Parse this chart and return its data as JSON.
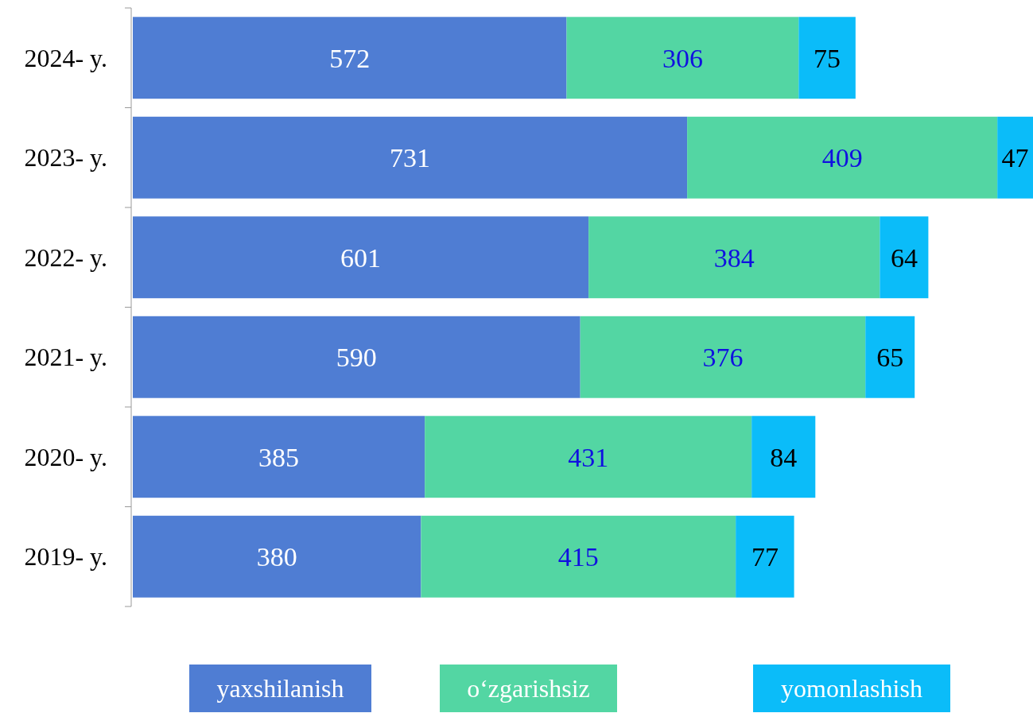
{
  "chart_data": {
    "type": "bar",
    "orientation": "horizontal",
    "stacked": true,
    "categories": [
      "2024- y.",
      "2023- y.",
      "2022- y.",
      "2021- y.",
      "2020- y.",
      "2019- y."
    ],
    "series": [
      {
        "name": "yaxshilanish",
        "color": "#4f7dd3",
        "values": [
          572,
          731,
          601,
          590,
          385,
          380
        ]
      },
      {
        "name": "o‘zgarishsiz",
        "color": "#53d6a3",
        "values": [
          306,
          409,
          384,
          376,
          431,
          415
        ]
      },
      {
        "name": "yomonlashish",
        "color": "#0bbcf9",
        "values": [
          75,
          47,
          64,
          65,
          84,
          77
        ]
      }
    ],
    "data_labels": true,
    "legend": "bottom"
  }
}
